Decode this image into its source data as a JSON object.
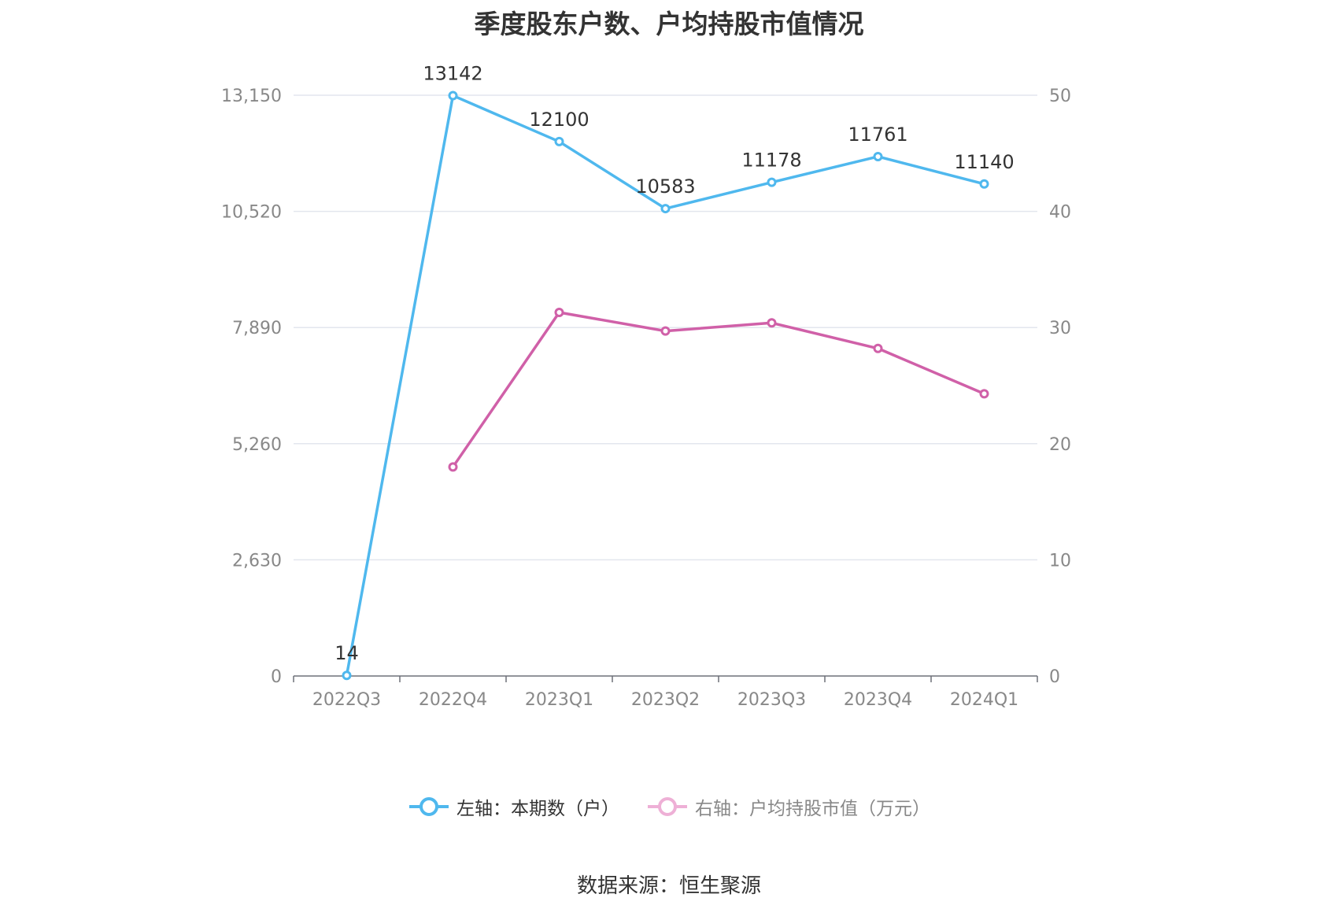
{
  "chart_data": {
    "type": "line",
    "title": "季度股东户数、户均持股市值情况",
    "categories": [
      "2022Q3",
      "2022Q4",
      "2023Q1",
      "2023Q2",
      "2023Q3",
      "2023Q4",
      "2024Q1"
    ],
    "left_axis": {
      "ticks": [
        "0",
        "2,630",
        "5,260",
        "7,890",
        "10,520",
        "13,150"
      ],
      "ylim": [
        0,
        13150
      ]
    },
    "right_axis": {
      "ticks": [
        "0",
        "10",
        "20",
        "30",
        "40",
        "50"
      ],
      "ylim": [
        0,
        50
      ]
    },
    "series": [
      {
        "name": "左轴：本期数（户）",
        "axis": "left",
        "color": "#4fb8ee",
        "values": [
          14,
          13142,
          12100,
          10583,
          11178,
          11761,
          11140
        ],
        "labels": [
          "14",
          "13142",
          "12100",
          "10583",
          "11178",
          "11761",
          "11140"
        ]
      },
      {
        "name": "右轴：户均持股市值（万元）",
        "axis": "right",
        "color": "#d060a8",
        "values": [
          null,
          18.0,
          31.3,
          29.7,
          30.4,
          28.2,
          24.3
        ]
      }
    ],
    "legend_position": "bottom",
    "grid": true
  },
  "legend": {
    "left_label": "左轴：本期数（户）",
    "right_label": "右轴：户均持股市值（万元）"
  },
  "source": "数据来源：恒生聚源"
}
